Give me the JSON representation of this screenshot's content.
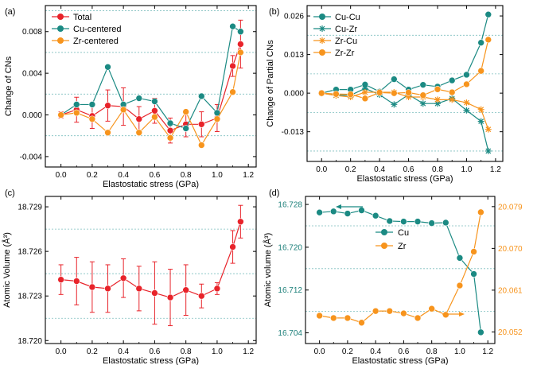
{
  "colors": {
    "red": "#e8232a",
    "teal": "#1b8a83",
    "orange": "#f7941d",
    "grid": "#7fbfbf",
    "axis": "#000000",
    "cuAxis": "#1b7f79",
    "zrAxis": "#f7941d"
  },
  "chart_data": [
    {
      "panel": "(a)",
      "type": "line",
      "xlabel": "Elastostatic stress (GPa)",
      "ylabel": "Change of CNs",
      "xlim": [
        -0.1,
        1.25
      ],
      "ylim": [
        -0.005,
        0.0105
      ],
      "xticks": [
        "0.0",
        "0.2",
        "0.4",
        "0.6",
        "0.8",
        "1.0",
        "1.2"
      ],
      "yticks": [
        "-0.004",
        "0.000",
        "0.004",
        "0.008"
      ],
      "ytickValues": [
        -0.004,
        0.0,
        0.004,
        0.008
      ],
      "gridlines": [
        -0.002,
        0.002,
        0.006,
        0.01
      ],
      "legend": "top-left",
      "x": [
        0.0,
        0.1,
        0.2,
        0.3,
        0.4,
        0.5,
        0.6,
        0.7,
        0.8,
        0.9,
        1.0,
        1.1,
        1.15
      ],
      "series": [
        {
          "name": "Total",
          "color": "red",
          "values": [
            0.0,
            0.0005,
            -0.0001,
            0.0009,
            0.0008,
            -0.0004,
            0.0004,
            -0.0015,
            -0.0009,
            -0.0009,
            -0.0003,
            0.0047,
            0.0068
          ],
          "errors": [
            0.0003,
            0.0012,
            0.0012,
            0.0015,
            0.0018,
            0.0012,
            0.0012,
            0.0012,
            0.0012,
            0.0012,
            0.0013,
            0.001,
            0.0023
          ]
        },
        {
          "name": "Cu-centered",
          "color": "teal",
          "values": [
            0.0,
            0.001,
            0.001,
            0.0046,
            0.001,
            0.0016,
            0.0013,
            -0.0008,
            -0.0013,
            0.0018,
            0.0002,
            0.0085,
            0.008
          ]
        },
        {
          "name": "Zr-centered",
          "color": "orange",
          "values": [
            0.0,
            0.0002,
            -0.0004,
            -0.0017,
            0.0005,
            -0.0017,
            -0.0002,
            -0.0022,
            0.0003,
            -0.0029,
            -0.0004,
            0.0022,
            0.006
          ]
        }
      ]
    },
    {
      "panel": "(b)",
      "type": "line",
      "xlabel": "Elastostatic stress (GPa)",
      "ylabel": "Change of Partial CNs",
      "xlim": [
        -0.1,
        1.25
      ],
      "ylim": [
        -0.023,
        0.0295
      ],
      "xticks": [
        "0.0",
        "0.2",
        "0.4",
        "0.6",
        "0.8",
        "1.0",
        "1.2"
      ],
      "yticks": [
        "-0.013",
        "0.000",
        "0.013",
        "0.026"
      ],
      "ytickValues": [
        -0.013,
        0.0,
        0.013,
        0.026
      ],
      "gridlines": [
        -0.0195,
        -0.0065,
        0.0065,
        0.0195
      ],
      "legend": "top-left",
      "x": [
        0.0,
        0.1,
        0.2,
        0.3,
        0.4,
        0.5,
        0.6,
        0.7,
        0.8,
        0.9,
        1.0,
        1.1,
        1.15
      ],
      "series": [
        {
          "name": "Cu-Cu",
          "color": "teal",
          "marker": "circle",
          "values": [
            0.0,
            0.0012,
            0.0012,
            0.0029,
            0.0005,
            0.0047,
            0.0012,
            0.0028,
            0.0022,
            0.0043,
            0.0062,
            0.017,
            0.0265
          ]
        },
        {
          "name": "Cu-Zr",
          "color": "teal",
          "marker": "star",
          "values": [
            0.0,
            -0.0007,
            -0.0007,
            0.0016,
            -0.0005,
            -0.0038,
            -0.0005,
            -0.0035,
            -0.0035,
            -0.0018,
            -0.0058,
            -0.0095,
            -0.0195
          ]
        },
        {
          "name": "Zr-Cu",
          "color": "orange",
          "marker": "star",
          "values": [
            0.0,
            -0.0008,
            -0.0013,
            0.0003,
            0.0003,
            0.0003,
            -0.0013,
            -0.0013,
            -0.0022,
            -0.0022,
            -0.0032,
            -0.0055,
            -0.0122
          ]
        },
        {
          "name": "Zr-Zr",
          "color": "orange",
          "marker": "circle",
          "values": [
            0.0,
            -0.0003,
            -0.0004,
            -0.0018,
            0.0002,
            0.0,
            0.0002,
            -0.0007,
            0.0013,
            0.0003,
            0.003,
            0.0075,
            0.018
          ]
        }
      ]
    },
    {
      "panel": "(c)",
      "type": "line",
      "xlabel": "Elastostatic stress (GPa)",
      "ylabel": "Atomic Volume (Å³)",
      "xlim": [
        -0.1,
        1.25
      ],
      "ylim": [
        18.7198,
        18.7297
      ],
      "xticks": [
        "0.0",
        "0.2",
        "0.4",
        "0.6",
        "0.8",
        "1.0",
        "1.2"
      ],
      "yticks": [
        "18.720",
        "18.723",
        "18.726",
        "18.729"
      ],
      "ytickValues": [
        18.72,
        18.723,
        18.726,
        18.729
      ],
      "gridlines": [
        18.7215,
        18.7245,
        18.7275
      ],
      "x": [
        0.0,
        0.1,
        0.2,
        0.3,
        0.4,
        0.5,
        0.6,
        0.7,
        0.8,
        0.9,
        1.0,
        1.1,
        1.15
      ],
      "series": [
        {
          "name": "Atomic Volume",
          "color": "red",
          "values": [
            18.7241,
            18.724,
            18.7236,
            18.7235,
            18.7242,
            18.7235,
            18.7232,
            18.7229,
            18.7234,
            18.723,
            18.7235,
            18.7263,
            18.728
          ],
          "errors": [
            0.001,
            0.0016,
            0.0017,
            0.0016,
            0.0013,
            0.0015,
            0.0021,
            0.0019,
            0.0017,
            0.0008,
            0.0004,
            0.0011,
            0.0011
          ]
        }
      ]
    },
    {
      "panel": "(d)",
      "type": "line",
      "xlabel": "Elastostatic stress (GPa)",
      "ylabel": "Atomic volume (Å³)",
      "xlim": [
        -0.1,
        1.25
      ],
      "ylim": [
        16.702,
        16.7295
      ],
      "y2lim": [
        20.0495,
        20.0812
      ],
      "xticks": [
        "0.0",
        "0.2",
        "0.4",
        "0.6",
        "0.8",
        "1.0",
        "1.2"
      ],
      "yticks": [
        "16.704",
        "16.712",
        "16.720",
        "16.728"
      ],
      "ytickValues": [
        16.704,
        16.712,
        16.72,
        16.728
      ],
      "y2ticks": [
        "20.052",
        "20.061",
        "20.070",
        "20.079"
      ],
      "y2tickValues": [
        20.052,
        20.061,
        20.07,
        20.079
      ],
      "gridlines": [
        16.708,
        16.716,
        16.724
      ],
      "legend": "upper-middle",
      "x": [
        0.0,
        0.1,
        0.2,
        0.3,
        0.4,
        0.5,
        0.6,
        0.7,
        0.8,
        0.9,
        1.0,
        1.1,
        1.15
      ],
      "series": [
        {
          "name": "Cu",
          "color": "teal",
          "axis": "left",
          "values": [
            16.7265,
            16.7267,
            16.7263,
            16.7269,
            16.7259,
            16.7249,
            16.7248,
            16.7248,
            16.7245,
            16.7246,
            16.718,
            16.715,
            16.7041
          ]
        },
        {
          "name": "Zr",
          "color": "orange",
          "axis": "right",
          "values": [
            20.0555,
            20.055,
            20.055,
            20.054,
            20.0565,
            20.0565,
            20.056,
            20.055,
            20.057,
            20.0557,
            20.062,
            20.0693,
            20.0778
          ]
        }
      ]
    }
  ]
}
